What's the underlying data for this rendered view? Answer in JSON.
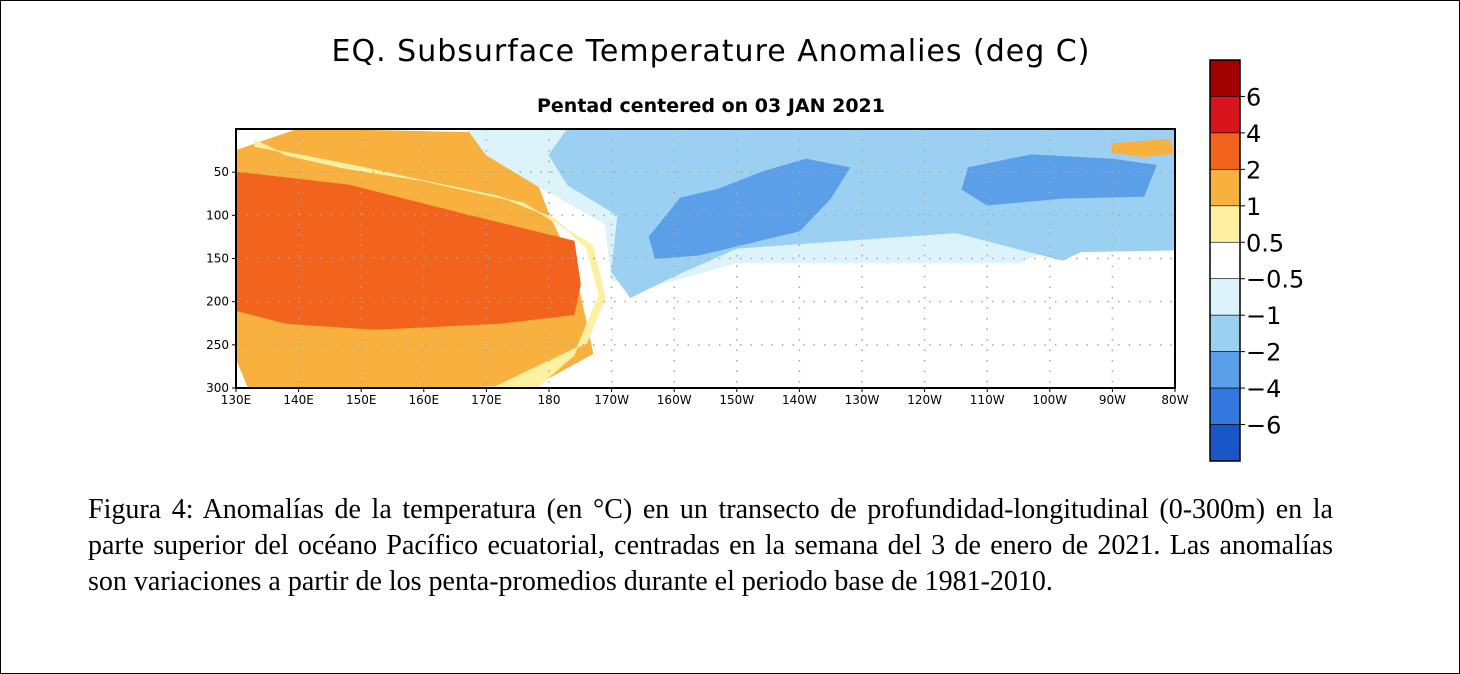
{
  "chart_data": {
    "type": "heatmap",
    "title": "EQ. Subsurface Temperature Anomalies (deg C)",
    "subtitle": "Pentad centered on 03 JAN 2021",
    "xlabel": "",
    "ylabel": "",
    "x_ticks": [
      "130E",
      "140E",
      "150E",
      "160E",
      "170E",
      "180",
      "170W",
      "160W",
      "150W",
      "140W",
      "130W",
      "120W",
      "110W",
      "100W",
      "90W",
      "80W"
    ],
    "y_ticks": [
      50,
      100,
      150,
      200,
      250,
      300
    ],
    "ylim": [
      0,
      300
    ],
    "y_inverted": true,
    "grid": "dotted",
    "colorbar": {
      "levels": [
        "6",
        "4",
        "2",
        "1",
        "0.5",
        "−0.5",
        "−1",
        "−2",
        "−4",
        "−6"
      ],
      "colors": [
        "#a30000",
        "#d8141c",
        "#f2631e",
        "#f8b03e",
        "#fdf0a0",
        "#ffffff",
        "#ddf3fa",
        "#9bd0f3",
        "#5a9fe8",
        "#3278de",
        "#1a56c8"
      ]
    },
    "regions": [
      {
        "label": "1 to 2",
        "color": "#f8b03e",
        "points": [
          [
            130,
            25
          ],
          [
            140,
            0
          ],
          [
            172,
            5
          ],
          [
            177,
            42
          ],
          [
            180,
            100
          ],
          [
            184,
            160
          ],
          [
            187,
            260
          ],
          [
            178,
            296
          ],
          [
            160,
            300
          ],
          [
            132,
            300
          ],
          [
            130,
            265
          ]
        ]
      },
      {
        "label": "2 to 4",
        "color": "#f2631e",
        "points": [
          [
            130,
            50
          ],
          [
            148,
            65
          ],
          [
            166,
            98
          ],
          [
            184,
            130
          ],
          [
            185,
            180
          ],
          [
            184,
            215
          ],
          [
            172,
            225
          ],
          [
            152,
            232
          ],
          [
            138,
            225
          ],
          [
            130,
            210
          ]
        ]
      },
      {
        "label": "0.5 to 1",
        "color": "#fdf0a0",
        "points": [
          [
            133,
            13
          ],
          [
            138,
            30
          ],
          [
            147,
            45
          ],
          [
            160,
            60
          ],
          [
            172,
            78
          ],
          [
            181,
            104
          ],
          [
            186,
            138
          ],
          [
            188,
            192
          ],
          [
            184,
            262
          ],
          [
            178,
            300
          ],
          [
            171,
            300
          ],
          [
            186,
            248
          ],
          [
            189,
            195
          ],
          [
            187,
            135
          ],
          [
            176,
            86
          ],
          [
            150,
            44
          ],
          [
            133,
            20
          ]
        ]
      },
      {
        "label": "-0.5 to -1",
        "color": "#ddf3fa",
        "points": [
          [
            167,
            0
          ],
          [
            280,
            0
          ],
          [
            280,
            135
          ],
          [
            260,
            140
          ],
          [
            255,
            155
          ],
          [
            210,
            155
          ],
          [
            195,
            185
          ],
          [
            190,
            175
          ],
          [
            189,
            110
          ],
          [
            178,
            65
          ],
          [
            170,
            30
          ]
        ]
      },
      {
        "label": "-1 to -2",
        "color": "#9bd0f3",
        "points": [
          [
            183,
            0
          ],
          [
            280,
            0
          ],
          [
            280,
            140
          ],
          [
            265,
            142
          ],
          [
            262,
            152
          ],
          [
            245,
            120
          ],
          [
            210,
            138
          ],
          [
            200,
            170
          ],
          [
            193,
            195
          ],
          [
            190,
            165
          ],
          [
            191,
            100
          ],
          [
            183,
            65
          ],
          [
            180,
            30
          ]
        ]
      },
      {
        "label": "-2 to -4",
        "color": "#5a9fe8",
        "points": [
          [
            196,
            125
          ],
          [
            201,
            80
          ],
          [
            207,
            70
          ],
          [
            214,
            50
          ],
          [
            221,
            35
          ],
          [
            228,
            45
          ],
          [
            225,
            80
          ],
          [
            220,
            118
          ],
          [
            204,
            146
          ],
          [
            197,
            150
          ]
        ]
      },
      {
        "label": "-2 to -4",
        "color": "#5a9fe8",
        "points": [
          [
            247,
            45
          ],
          [
            257,
            30
          ],
          [
            270,
            35
          ],
          [
            277,
            42
          ],
          [
            275,
            78
          ],
          [
            262,
            80
          ],
          [
            250,
            88
          ],
          [
            246,
            70
          ]
        ]
      },
      {
        "label": "1 to 2",
        "color": "#f8b03e",
        "points": [
          [
            270,
            17
          ],
          [
            279,
            12
          ],
          [
            280,
            28
          ],
          [
            275,
            32
          ],
          [
            270,
            27
          ]
        ]
      }
    ]
  },
  "caption": "Figura 4: Anomalías de la temperatura (en °C) en un transecto de profundidad-longitudinal (0-300m) en la parte superior del océano Pacífico ecuatorial, centradas en la semana del 3 de enero de 2021. Las anomalías son variaciones a partir de los penta-promedios durante el periodo base de 1981-2010."
}
